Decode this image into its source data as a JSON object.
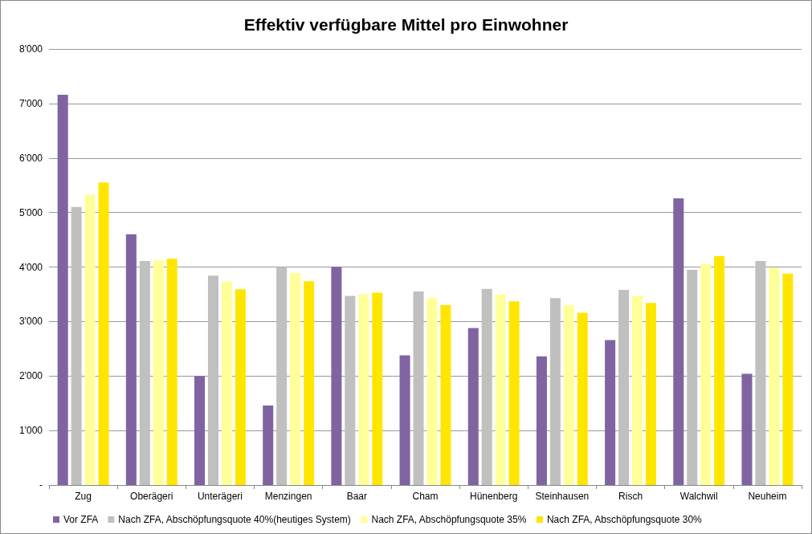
{
  "chart_data": {
    "type": "bar",
    "title": "Effektiv verfügbare Mittel pro Einwohner",
    "categories": [
      "Zug",
      "Oberägeri",
      "Unterägeri",
      "Menzingen",
      "Baar",
      "Cham",
      "Hünenberg",
      "Steinhausen",
      "Risch",
      "Walchwil",
      "Neuheim"
    ],
    "series": [
      {
        "name": "Vor ZFA",
        "color": "#8064a2",
        "values": [
          7160,
          4600,
          2000,
          1460,
          4000,
          2380,
          2880,
          2360,
          2660,
          5260,
          2040
        ]
      },
      {
        "name": "Nach ZFA, Abschöpfungsquote 40%(heutiges System)",
        "color": "#c0c0c0",
        "values": [
          5100,
          4110,
          3840,
          4000,
          3470,
          3550,
          3600,
          3430,
          3580,
          3950,
          4110
        ]
      },
      {
        "name": "Nach ZFA, Abschöpfungsquote 35%",
        "color": "#ffff99",
        "values": [
          5330,
          4120,
          3730,
          3890,
          3500,
          3430,
          3490,
          3300,
          3470,
          4060,
          3990
        ]
      },
      {
        "name": "Nach ZFA, Abschöpfungsquote 30%",
        "color": "#ffe600",
        "values": [
          5550,
          4150,
          3590,
          3740,
          3530,
          3300,
          3370,
          3160,
          3340,
          4200,
          3880
        ]
      }
    ],
    "ylim": [
      0,
      8000
    ],
    "yticks": [
      {
        "value": 0,
        "label": "-"
      },
      {
        "value": 1000,
        "label": "1'000"
      },
      {
        "value": 2000,
        "label": "2'000"
      },
      {
        "value": 3000,
        "label": "3'000"
      },
      {
        "value": 4000,
        "label": "4'000"
      },
      {
        "value": 5000,
        "label": "5'000"
      },
      {
        "value": 6000,
        "label": "6'000"
      },
      {
        "value": 7000,
        "label": "7'000"
      },
      {
        "value": 8000,
        "label": "8'000"
      }
    ],
    "grid": "y",
    "legend": "bottom"
  }
}
